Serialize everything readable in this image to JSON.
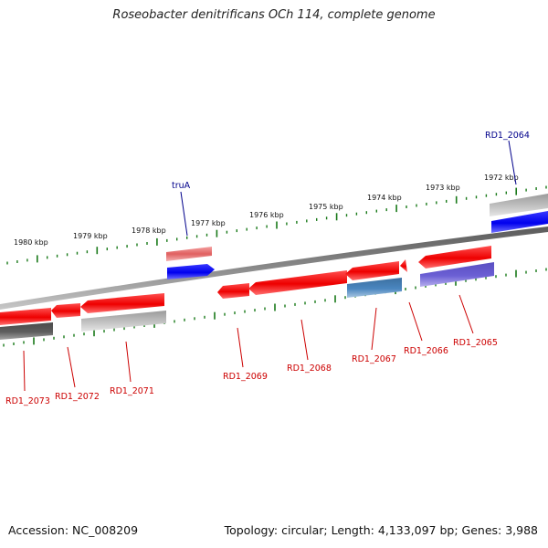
{
  "title": "Roseobacter denitrificans OCh 114, complete genome",
  "accession_label": "Accession: NC_008209",
  "genome_info_label": "Topology: circular; Length: 4,133,097 bp; Genes: 3,988",
  "colors": {
    "forward_gene": "#0000ee",
    "reverse_gene": "#ee0000",
    "label_forward": "#00008b",
    "label_reverse": "#cc0000",
    "tick": "#1a7a1a",
    "backbone": "#808080"
  },
  "scale_ticks": [
    {
      "label": "1980 kbp"
    },
    {
      "label": "1979 kbp"
    },
    {
      "label": "1978 kbp"
    },
    {
      "label": "1977 kbp"
    },
    {
      "label": "1976 kbp"
    },
    {
      "label": "1975 kbp"
    },
    {
      "label": "1974 kbp"
    },
    {
      "label": "1973 kbp"
    },
    {
      "label": "1972 kbp"
    }
  ],
  "genes_forward": [
    {
      "name": "truA",
      "color": "blue"
    },
    {
      "name": "RD1_2064",
      "color": "blue"
    }
  ],
  "genes_reverse": [
    {
      "name": "RD1_2073",
      "color": "red"
    },
    {
      "name": "RD1_2072",
      "color": "red"
    },
    {
      "name": "RD1_2071",
      "color": "red"
    },
    {
      "name": "RD1_2069",
      "color": "red"
    },
    {
      "name": "RD1_2068",
      "color": "red"
    },
    {
      "name": "RD1_2067",
      "color": "red"
    },
    {
      "name": "RD1_2066",
      "color": "red"
    },
    {
      "name": "RD1_2065",
      "color": "red"
    }
  ]
}
